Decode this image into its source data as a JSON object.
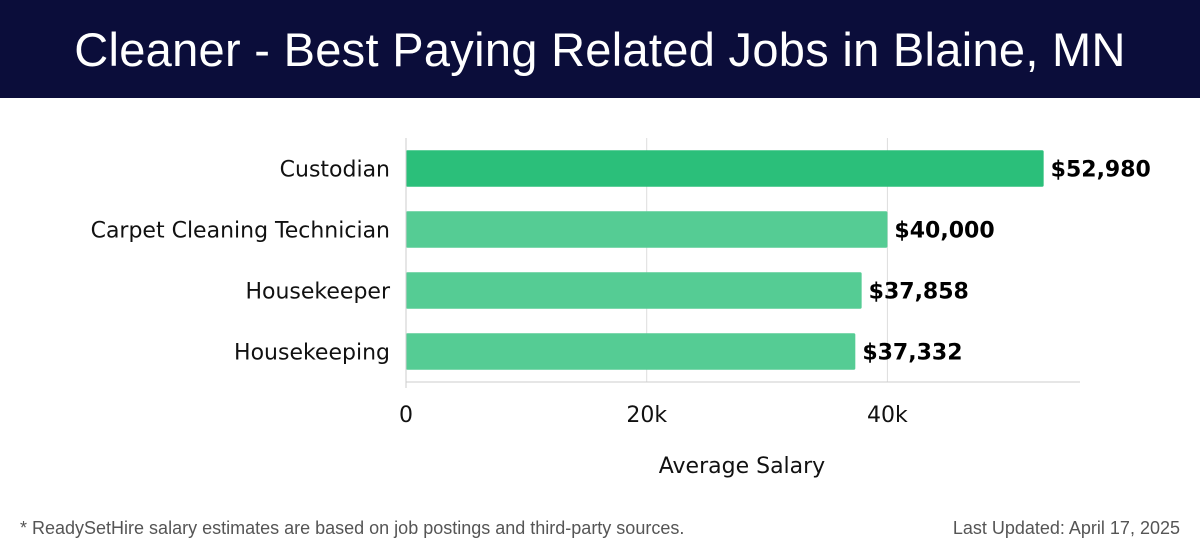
{
  "header": {
    "title": "Cleaner - Best Paying Related Jobs in Blaine, MN"
  },
  "chart_data": {
    "type": "bar",
    "orientation": "horizontal",
    "categories": [
      "Custodian",
      "Carpet Cleaning Technician",
      "Housekeeper",
      "Housekeeping"
    ],
    "values": [
      52980,
      40000,
      37858,
      37332
    ],
    "value_labels": [
      "$52,980",
      "$40,000",
      "$37,858",
      "$37,332"
    ],
    "xlabel": "Average Salary",
    "ylabel": "",
    "xlim": [
      0,
      56000
    ],
    "x_ticks": [
      0,
      20000,
      40000
    ],
    "x_tick_labels": [
      "0",
      "20k",
      "40k"
    ],
    "grid": "vertical",
    "colors": {
      "highlight": "#2bbf7a",
      "bar": "#55cc94",
      "grid": "#dddddd",
      "axis": "#cccccc"
    }
  },
  "footer": {
    "note": "* ReadySetHire salary estimates are based on job postings and third-party sources.",
    "updated": "Last Updated: April 17, 2025"
  }
}
